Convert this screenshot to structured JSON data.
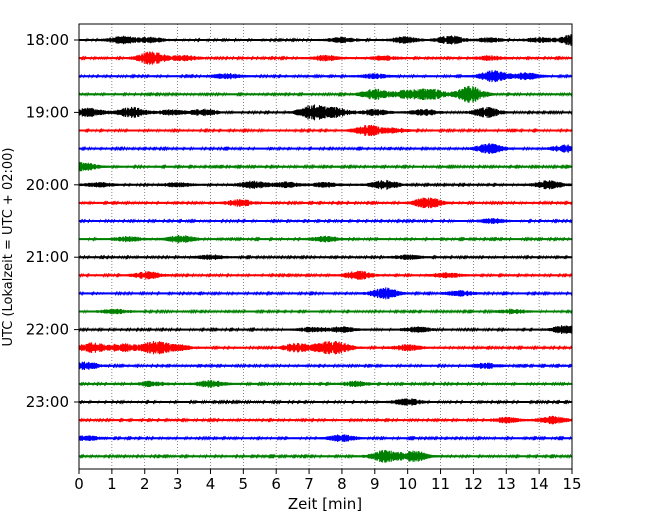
{
  "chart_data": {
    "type": "line",
    "title": "",
    "xlabel": "Zeit  [min]",
    "ylabel": "UTC (Lokalzeit = UTC + 02:00)",
    "xlim": [
      0,
      15
    ],
    "x_ticks": [
      "0",
      "1",
      "2",
      "3",
      "4",
      "5",
      "6",
      "7",
      "8",
      "9",
      "10",
      "11",
      "12",
      "13",
      "14",
      "15"
    ],
    "y_tick_labels": [
      "18:00",
      "19:00",
      "20:00",
      "21:00",
      "22:00",
      "23:00"
    ],
    "grid": {
      "x": true,
      "y": false,
      "style": "dotted"
    },
    "series_colors": [
      "#000000",
      "#ff0000",
      "#0000ff",
      "#008000"
    ],
    "traces": [
      {
        "start": "18:00",
        "color": "#000000",
        "events": [
          [
            1.3,
            0.5
          ],
          [
            2.2,
            0.35
          ],
          [
            8.0,
            0.35
          ],
          [
            9.9,
            0.4
          ],
          [
            11.3,
            0.55
          ],
          [
            12.5,
            0.3
          ],
          [
            14.0,
            0.3
          ],
          [
            15.0,
            0.7
          ]
        ]
      },
      {
        "start": "18:15",
        "color": "#ff0000",
        "events": [
          [
            2.2,
            0.9
          ],
          [
            3.2,
            0.35
          ],
          [
            7.5,
            0.35
          ],
          [
            9.3,
            0.3
          ],
          [
            12.5,
            0.3
          ]
        ]
      },
      {
        "start": "18:30",
        "color": "#0000ff",
        "events": [
          [
            4.5,
            0.35
          ],
          [
            9.0,
            0.3
          ],
          [
            12.6,
            0.75
          ],
          [
            13.6,
            0.45
          ]
        ]
      },
      {
        "start": "18:45",
        "color": "#008000",
        "events": [
          [
            9.0,
            0.7
          ],
          [
            10.0,
            0.55
          ],
          [
            10.7,
            0.75
          ],
          [
            11.9,
            1.1
          ]
        ]
      },
      {
        "start": "19:00",
        "color": "#000000",
        "events": [
          [
            0.3,
            0.6
          ],
          [
            1.6,
            0.7
          ],
          [
            2.8,
            0.35
          ],
          [
            3.8,
            0.45
          ],
          [
            7.1,
            1.0
          ],
          [
            7.8,
            0.6
          ],
          [
            9.0,
            0.4
          ],
          [
            10.5,
            0.4
          ],
          [
            12.4,
            0.7
          ]
        ]
      },
      {
        "start": "19:15",
        "color": "#ff0000",
        "events": [
          [
            8.8,
            0.7
          ],
          [
            9.6,
            0.3
          ]
        ]
      },
      {
        "start": "19:30",
        "color": "#0000ff",
        "events": [
          [
            12.5,
            0.65
          ],
          [
            14.8,
            0.5
          ]
        ]
      },
      {
        "start": "19:45",
        "color": "#008000",
        "events": [
          [
            0.1,
            0.6
          ]
        ]
      },
      {
        "start": "20:00",
        "color": "#000000",
        "events": [
          [
            0.6,
            0.3
          ],
          [
            3.0,
            0.3
          ],
          [
            5.3,
            0.5
          ],
          [
            6.3,
            0.35
          ],
          [
            7.5,
            0.3
          ],
          [
            9.3,
            0.6
          ],
          [
            14.3,
            0.55
          ]
        ]
      },
      {
        "start": "20:15",
        "color": "#ff0000",
        "events": [
          [
            4.9,
            0.45
          ],
          [
            10.6,
            0.75
          ]
        ]
      },
      {
        "start": "20:30",
        "color": "#0000ff",
        "events": [
          [
            12.6,
            0.3
          ]
        ]
      },
      {
        "start": "20:45",
        "color": "#008000",
        "events": [
          [
            1.5,
            0.35
          ],
          [
            3.1,
            0.5
          ],
          [
            7.5,
            0.35
          ]
        ]
      },
      {
        "start": "21:00",
        "color": "#000000",
        "events": [
          [
            4.0,
            0.3
          ],
          [
            10.0,
            0.3
          ]
        ]
      },
      {
        "start": "21:15",
        "color": "#ff0000",
        "events": [
          [
            2.1,
            0.5
          ],
          [
            8.5,
            0.55
          ],
          [
            11.2,
            0.35
          ]
        ]
      },
      {
        "start": "21:30",
        "color": "#0000ff",
        "events": [
          [
            9.3,
            0.75
          ],
          [
            11.6,
            0.35
          ]
        ]
      },
      {
        "start": "21:45",
        "color": "#008000",
        "events": [
          [
            1.1,
            0.3
          ],
          [
            13.2,
            0.3
          ]
        ]
      },
      {
        "start": "22:00",
        "color": "#000000",
        "events": [
          [
            7.1,
            0.3
          ],
          [
            8.0,
            0.35
          ],
          [
            10.3,
            0.35
          ],
          [
            14.8,
            0.55
          ]
        ]
      },
      {
        "start": "22:15",
        "color": "#ff0000",
        "events": [
          [
            0.4,
            0.65
          ],
          [
            1.3,
            0.55
          ],
          [
            2.3,
            0.85
          ],
          [
            3.0,
            0.4
          ],
          [
            6.6,
            0.55
          ],
          [
            7.4,
            0.5
          ],
          [
            7.9,
            0.7
          ],
          [
            10.0,
            0.4
          ]
        ]
      },
      {
        "start": "22:30",
        "color": "#0000ff",
        "events": [
          [
            0.2,
            0.5
          ],
          [
            12.4,
            0.35
          ]
        ]
      },
      {
        "start": "22:45",
        "color": "#008000",
        "events": [
          [
            2.2,
            0.35
          ],
          [
            4.0,
            0.5
          ],
          [
            8.4,
            0.35
          ]
        ]
      },
      {
        "start": "23:00",
        "color": "#000000",
        "events": [
          [
            10.0,
            0.45
          ]
        ]
      },
      {
        "start": "23:15",
        "color": "#ff0000",
        "events": [
          [
            13.0,
            0.35
          ],
          [
            14.4,
            0.5
          ]
        ]
      },
      {
        "start": "23:30",
        "color": "#0000ff",
        "events": [
          [
            0.2,
            0.35
          ],
          [
            8.0,
            0.45
          ]
        ]
      },
      {
        "start": "23:45",
        "color": "#008000",
        "events": [
          [
            9.3,
            0.8
          ],
          [
            10.2,
            0.7
          ]
        ]
      }
    ]
  }
}
